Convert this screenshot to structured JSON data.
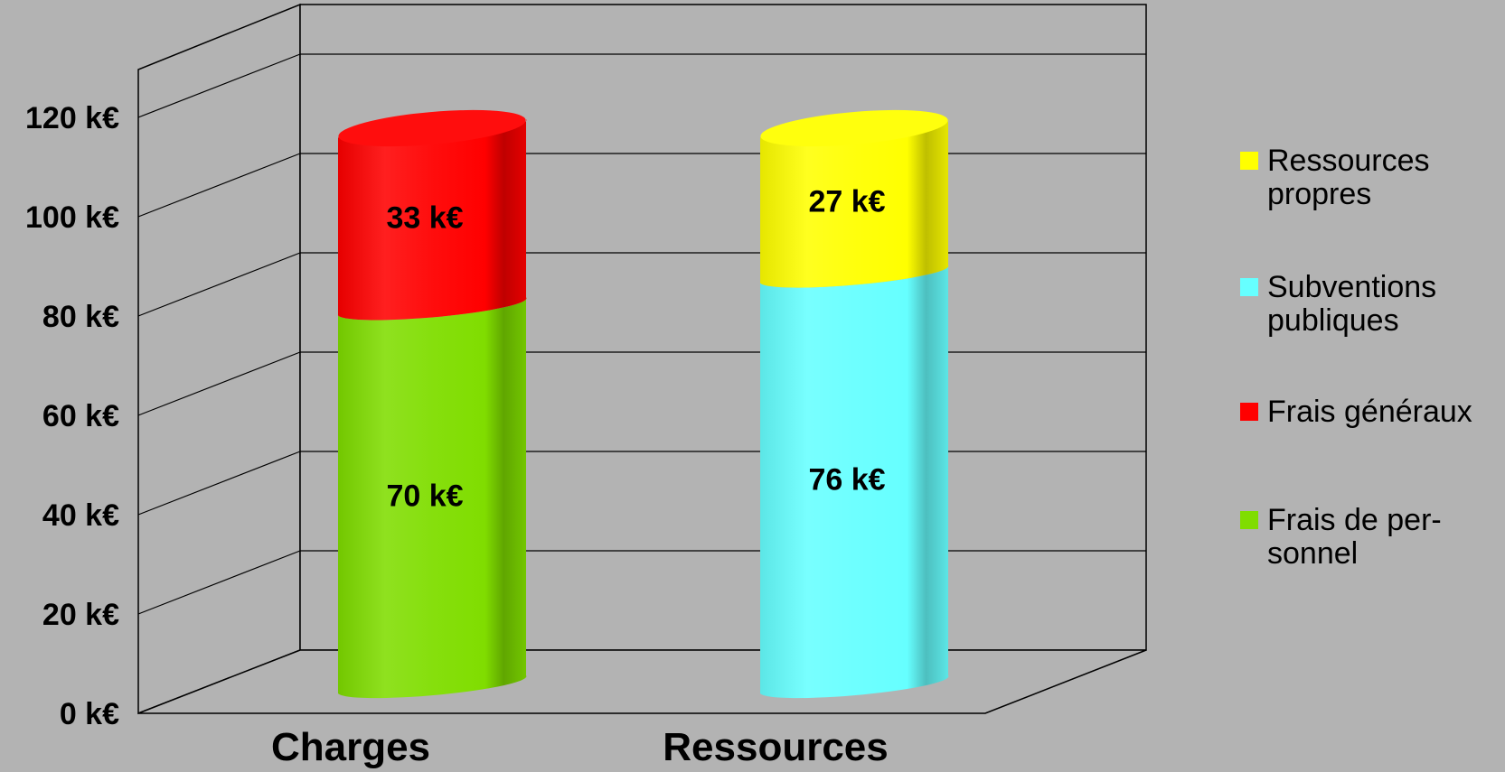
{
  "chart_data": {
    "type": "bar",
    "stacked": true,
    "style": "3d-cylinder",
    "categories": [
      "Charges",
      "Ressources"
    ],
    "series": [
      {
        "name": "Frais de personnel",
        "color": "#80dd00",
        "category": "Charges",
        "value": 70,
        "label": "70 k€"
      },
      {
        "name": "Frais généraux",
        "color": "#ff0000",
        "category": "Charges",
        "value": 33,
        "label": "33 k€"
      },
      {
        "name": "Subventions publiques",
        "color": "#66ffff",
        "category": "Ressources",
        "value": 76,
        "label": "76 k€"
      },
      {
        "name": "Ressources propres",
        "color": "#ffff00",
        "category": "Ressources",
        "value": 27,
        "label": "27 k€"
      }
    ],
    "yaxis": {
      "ticks": [
        0,
        20,
        40,
        60,
        80,
        100,
        120
      ],
      "tick_labels": [
        "0 k€",
        "20 k€",
        "40 k€",
        "60 k€",
        "80 k€",
        "100 k€",
        "120 k€"
      ],
      "ylim": [
        0,
        130
      ]
    },
    "grid": true,
    "legend": {
      "position": "right",
      "entries": [
        {
          "lines": [
            "Ressources",
            "propres"
          ],
          "color": "#ffff00"
        },
        {
          "lines": [
            "Subventions",
            "publiques"
          ],
          "color": "#66ffff"
        },
        {
          "lines": [
            "Frais généraux"
          ],
          "color": "#ff0000"
        },
        {
          "lines": [
            "Frais de per-",
            "sonnel"
          ],
          "color": "#80dd00"
        }
      ]
    },
    "title": "",
    "xlabel": "",
    "ylabel": ""
  }
}
